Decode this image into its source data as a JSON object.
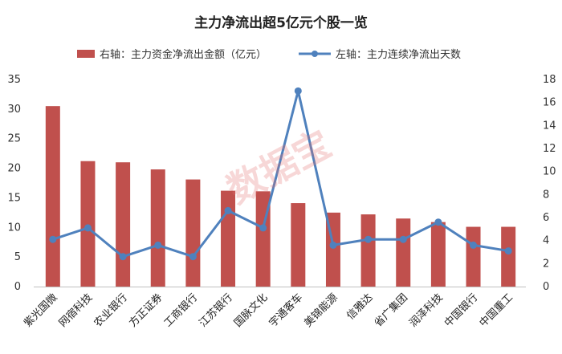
{
  "chart_data": {
    "type": "bar+line",
    "title": "主力净流出超5亿元个股一览",
    "categories": [
      "紫光国微",
      "网宿科技",
      "农业银行",
      "方正证券",
      "工商银行",
      "江苏银行",
      "国脉文化",
      "宇通客车",
      "美锦能源",
      "信雅达",
      "省广集团",
      "润泽科技",
      "中国银行",
      "中国重工"
    ],
    "series": [
      {
        "name": "右轴：主力资金净流出金额（亿元）",
        "type": "bar",
        "axis": "left",
        "color": "#c0504d",
        "values": [
          30.5,
          21.2,
          21.0,
          19.8,
          18.1,
          16.2,
          16.1,
          14.1,
          12.5,
          12.2,
          11.5,
          10.9,
          10.1,
          10.1
        ]
      },
      {
        "name": "左轴：主力连续净流出天数",
        "type": "line",
        "axis": "right",
        "color": "#4f81bd",
        "values": [
          4.1,
          5.1,
          2.6,
          3.6,
          2.6,
          6.6,
          5.1,
          17.0,
          3.6,
          4.1,
          4.1,
          5.6,
          3.6,
          3.1
        ]
      }
    ],
    "y_left": {
      "ticks": [
        "0",
        "5",
        "10",
        "15",
        "20",
        "25",
        "30",
        "35"
      ],
      "ylim": [
        0,
        35
      ]
    },
    "y_right": {
      "ticks": [
        "0",
        "2",
        "4",
        "6",
        "8",
        "10",
        "12",
        "14",
        "16",
        "18"
      ],
      "ylim": [
        0,
        18
      ]
    },
    "legend_position": "top-center",
    "grid": false
  },
  "watermark": "数据宝"
}
